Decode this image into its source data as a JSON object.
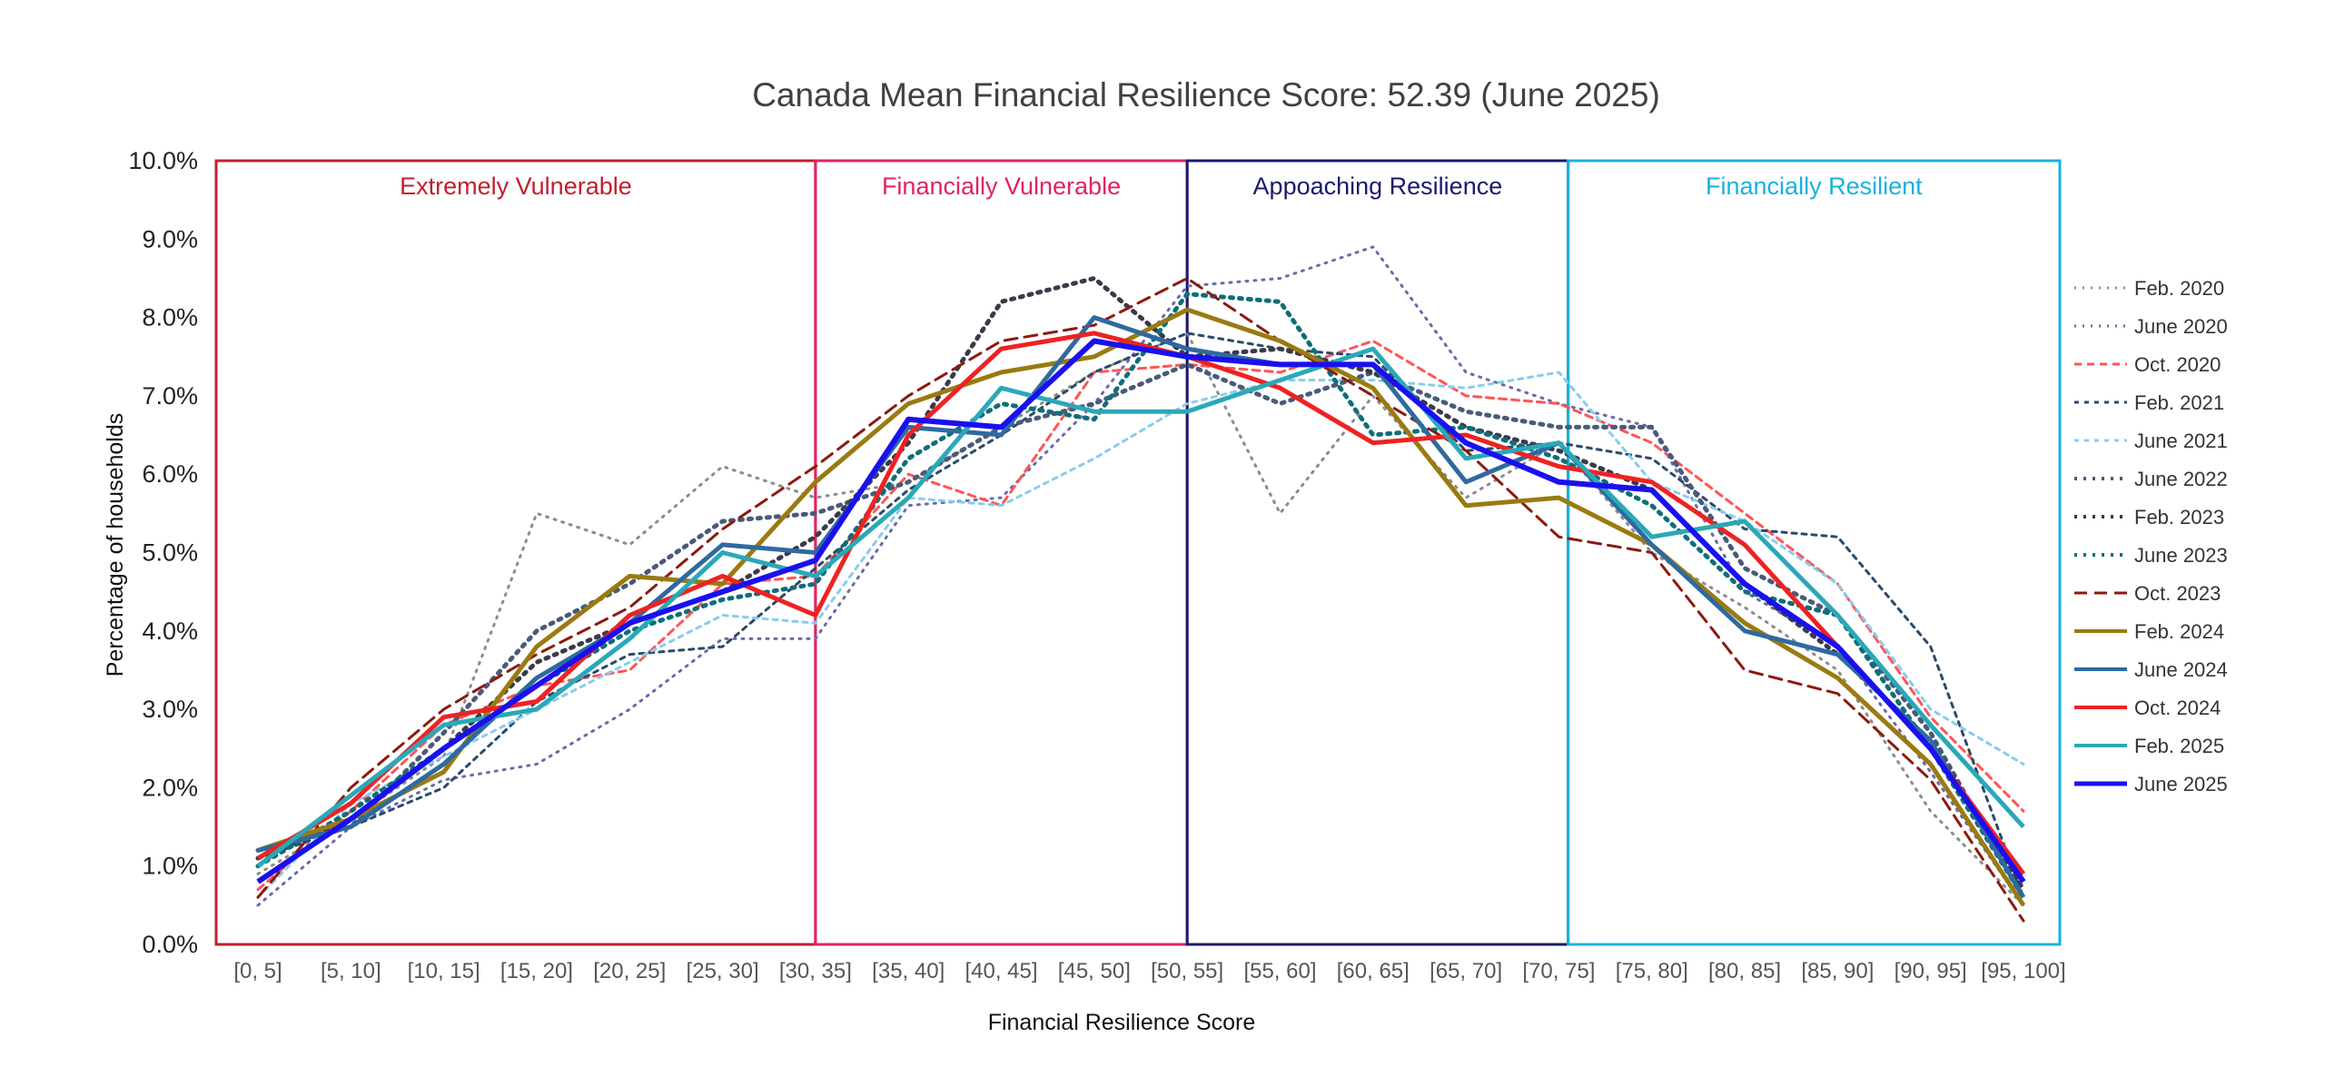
{
  "chart_data": {
    "type": "line",
    "title": "Canada Mean Financial Resilience Score: 52.39 (June 2025)",
    "xlabel": "Financial Resilience Score",
    "ylabel": "Percentage of households",
    "ylim": [
      0,
      10
    ],
    "y_ticks": [
      "0.0%",
      "1.0%",
      "2.0%",
      "3.0%",
      "4.0%",
      "5.0%",
      "6.0%",
      "7.0%",
      "8.0%",
      "9.0%",
      "10.0%"
    ],
    "grid": false,
    "legend_position": "right",
    "categories": [
      "[0, 5]",
      "[5, 10]",
      "[10, 15]",
      "[15, 20]",
      "[20, 25]",
      "[25, 30]",
      "[30, 35]",
      "[35, 40]",
      "[40, 45]",
      "[45, 50]",
      "[50, 55]",
      "[55, 60]",
      "[60, 65]",
      "[65, 70]",
      "[70, 75]",
      "[75, 80]",
      "[80, 85]",
      "[85, 90]",
      "[90, 95]",
      "[95, 100]"
    ],
    "zones": [
      {
        "label": "Extremely Vulnerable",
        "color": "#c0202e",
        "from": 0,
        "to": 6.5
      },
      {
        "label": "Financially Vulnerable",
        "color": "#e0245e",
        "from": 6.5,
        "to": 10.5
      },
      {
        "label": "Appoaching Resilience",
        "color": "#1a1a6e",
        "from": 10.5,
        "to": 14.6
      },
      {
        "label": "Financially Resilient",
        "color": "#1ab0e0",
        "from": 14.6,
        "to": 20.2
      }
    ],
    "series": [
      {
        "name": "Feb. 2020",
        "color": "#8c8c8c",
        "dash": "2,7",
        "width": 3,
        "values": [
          0.9,
          1.6,
          2.4,
          5.5,
          5.1,
          6.1,
          5.7,
          5.9,
          6.6,
          7.3,
          7.8,
          5.5,
          7.0,
          5.7,
          6.4,
          5.0,
          4.3,
          3.5,
          1.7,
          0.5
        ]
      },
      {
        "name": "June 2020",
        "color": "#6a6aa8",
        "dash": "2,7",
        "width": 3,
        "values": [
          0.5,
          1.5,
          2.1,
          2.3,
          3.0,
          3.9,
          3.9,
          5.6,
          5.7,
          6.9,
          8.4,
          8.5,
          8.9,
          7.3,
          6.9,
          6.6,
          4.5,
          3.8,
          2.2,
          0.5
        ]
      },
      {
        "name": "Oct. 2020",
        "color": "#ff5555",
        "dash": "8,6",
        "width": 3,
        "values": [
          0.7,
          1.7,
          2.8,
          3.3,
          3.5,
          4.6,
          4.7,
          6.0,
          5.6,
          7.3,
          7.4,
          7.3,
          7.7,
          7.0,
          6.9,
          6.4,
          5.5,
          4.6,
          2.9,
          1.7
        ]
      },
      {
        "name": "Feb. 2021",
        "color": "#2a4a6a",
        "dash": "5,6",
        "width": 3,
        "values": [
          1.1,
          1.5,
          2.0,
          3.1,
          3.7,
          3.8,
          4.8,
          5.8,
          6.5,
          7.3,
          7.8,
          7.6,
          7.5,
          6.3,
          6.4,
          6.2,
          5.3,
          5.2,
          3.8,
          0.6
        ]
      },
      {
        "name": "June 2021",
        "color": "#88ccee",
        "dash": "5,6",
        "width": 3,
        "values": [
          0.6,
          1.8,
          2.4,
          3.0,
          3.6,
          4.2,
          4.1,
          5.7,
          5.6,
          6.2,
          6.9,
          7.2,
          7.2,
          7.1,
          7.3,
          5.9,
          5.4,
          4.6,
          3.0,
          2.3
        ]
      },
      {
        "name": "June 2022",
        "color": "#4a5a7a",
        "dash": "3,7",
        "width": 5,
        "values": [
          1.2,
          1.5,
          2.7,
          4.0,
          4.6,
          5.4,
          5.5,
          5.9,
          6.6,
          6.9,
          7.4,
          6.9,
          7.3,
          6.8,
          6.6,
          6.6,
          4.8,
          4.2,
          2.7,
          0.6
        ]
      },
      {
        "name": "Feb. 2023",
        "color": "#3a3a4a",
        "dash": "3,7",
        "width": 5,
        "values": [
          1.1,
          1.6,
          2.5,
          3.6,
          4.1,
          4.5,
          5.2,
          6.4,
          8.2,
          8.5,
          7.5,
          7.6,
          7.3,
          6.6,
          6.3,
          5.8,
          4.6,
          3.7,
          2.6,
          0.7
        ]
      },
      {
        "name": "June 2023",
        "color": "#0e6e78",
        "dash": "3,7",
        "width": 5,
        "values": [
          1.0,
          1.7,
          2.5,
          3.3,
          4.0,
          4.4,
          4.6,
          6.2,
          6.9,
          6.7,
          8.3,
          8.2,
          6.5,
          6.6,
          6.2,
          5.6,
          4.5,
          4.2,
          2.5,
          0.6
        ]
      },
      {
        "name": "Oct. 2023",
        "color": "#8b1a10",
        "dash": "14,8",
        "width": 3,
        "values": [
          0.6,
          2.0,
          3.0,
          3.7,
          4.3,
          5.3,
          6.1,
          7.0,
          7.7,
          7.9,
          8.5,
          7.7,
          7.0,
          6.3,
          5.2,
          5.0,
          3.5,
          3.2,
          2.1,
          0.3
        ]
      },
      {
        "name": "Feb. 2024",
        "color": "#9a7a10",
        "dash": "",
        "width": 5,
        "values": [
          1.2,
          1.6,
          2.2,
          3.8,
          4.7,
          4.6,
          5.9,
          6.9,
          7.3,
          7.5,
          8.1,
          7.7,
          7.1,
          5.6,
          5.7,
          5.1,
          4.1,
          3.4,
          2.3,
          0.5
        ]
      },
      {
        "name": "June 2024",
        "color": "#2e6aa0",
        "dash": "",
        "width": 5,
        "values": [
          1.2,
          1.5,
          2.3,
          3.4,
          4.1,
          5.1,
          5.0,
          6.6,
          6.5,
          8.0,
          7.6,
          7.4,
          7.4,
          5.9,
          6.4,
          5.1,
          4.0,
          3.7,
          2.6,
          0.6
        ]
      },
      {
        "name": "Oct. 2024",
        "color": "#ee2222",
        "dash": "",
        "width": 5,
        "values": [
          1.1,
          1.8,
          2.9,
          3.1,
          4.2,
          4.7,
          4.2,
          6.5,
          7.6,
          7.8,
          7.5,
          7.1,
          6.4,
          6.5,
          6.1,
          5.9,
          5.1,
          3.8,
          2.5,
          0.9
        ]
      },
      {
        "name": "Feb. 2025",
        "color": "#2aa8b8",
        "dash": "",
        "width": 5,
        "values": [
          1.0,
          1.9,
          2.8,
          3.0,
          3.9,
          5.0,
          4.7,
          5.7,
          7.1,
          6.8,
          6.8,
          7.2,
          7.6,
          6.2,
          6.4,
          5.2,
          5.4,
          4.2,
          2.8,
          1.5
        ]
      },
      {
        "name": "June 2025",
        "color": "#1a10ee",
        "dash": "",
        "width": 6,
        "values": [
          0.8,
          1.6,
          2.5,
          3.3,
          4.1,
          4.5,
          4.9,
          6.7,
          6.6,
          7.7,
          7.5,
          7.4,
          7.4,
          6.4,
          5.9,
          5.8,
          4.6,
          3.8,
          2.5,
          0.8
        ]
      }
    ]
  }
}
